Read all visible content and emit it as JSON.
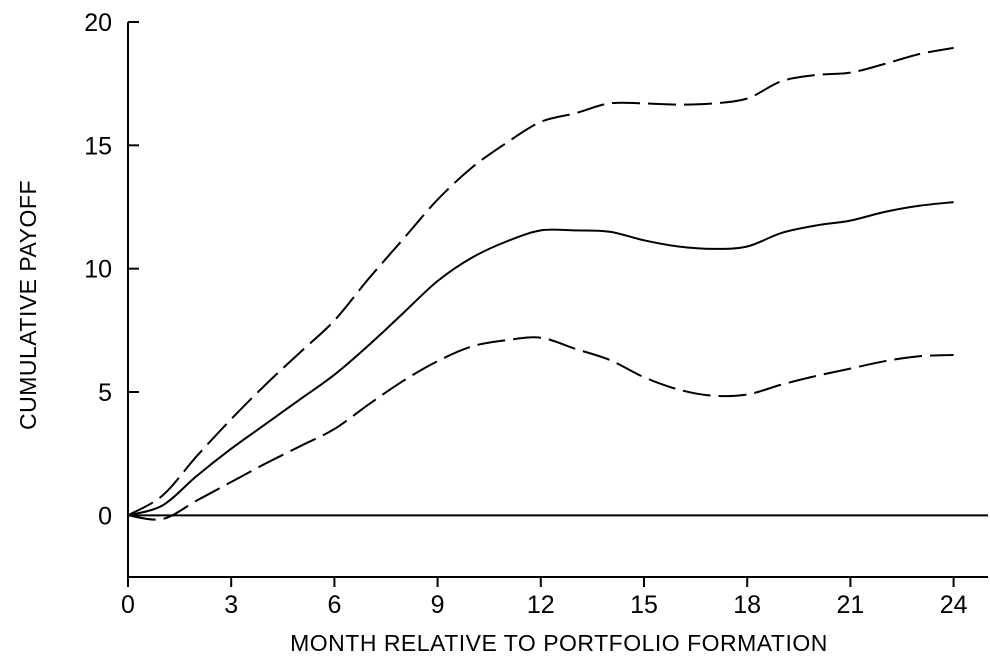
{
  "chart_data": {
    "type": "line",
    "title": "",
    "xlabel": "MONTH RELATIVE TO PORTFOLIO FORMATION",
    "ylabel": "CUMULATIVE PAYOFF",
    "xlim": [
      0,
      25
    ],
    "ylim": [
      -2.5,
      20
    ],
    "xticks": [
      0,
      3,
      6,
      9,
      12,
      15,
      18,
      21,
      24
    ],
    "yticks": [
      0,
      5,
      10,
      15,
      20
    ],
    "reference_line_y": 0,
    "grid": false,
    "legend": "none",
    "x": [
      0,
      1,
      2,
      3,
      4,
      5,
      6,
      7,
      8,
      9,
      10,
      11,
      12,
      13,
      14,
      15,
      16,
      17,
      18,
      19,
      20,
      21,
      22,
      23,
      24
    ],
    "series": [
      {
        "style": "dashed",
        "color": "#000000",
        "values": [
          0,
          0.8,
          2.4,
          3.9,
          5.3,
          6.6,
          7.9,
          9.6,
          11.2,
          12.8,
          14.1,
          15.1,
          15.95,
          16.3,
          16.7,
          16.7,
          16.65,
          16.7,
          16.9,
          17.6,
          17.85,
          17.95,
          18.3,
          18.7,
          18.95
        ]
      },
      {
        "style": "solid",
        "color": "#000000",
        "values": [
          0,
          0.4,
          1.6,
          2.7,
          3.7,
          4.7,
          5.7,
          6.9,
          8.2,
          9.5,
          10.45,
          11.1,
          11.55,
          11.55,
          11.5,
          11.15,
          10.9,
          10.8,
          10.9,
          11.45,
          11.75,
          11.95,
          12.3,
          12.55,
          12.7
        ]
      },
      {
        "style": "dashed",
        "color": "#000000",
        "values": [
          0,
          -0.15,
          0.6,
          1.35,
          2.1,
          2.8,
          3.5,
          4.5,
          5.45,
          6.25,
          6.85,
          7.1,
          7.2,
          6.75,
          6.3,
          5.6,
          5.1,
          4.85,
          4.9,
          5.3,
          5.65,
          5.95,
          6.25,
          6.45,
          6.5
        ]
      }
    ]
  }
}
